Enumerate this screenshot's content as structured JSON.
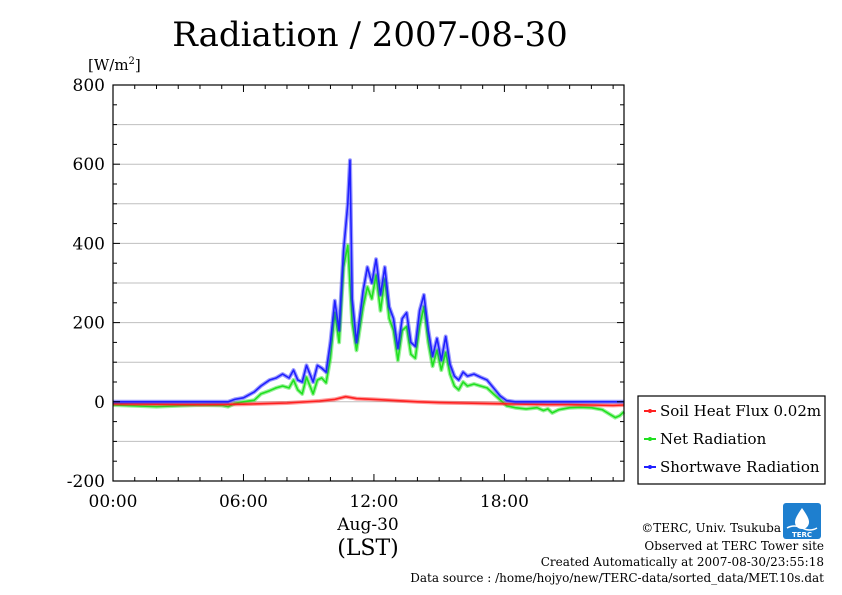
{
  "chart_data": {
    "type": "line",
    "title": "Radiation / 2007-08-30",
    "ylabel_unit": "[W/m",
    "ylabel_unit_sup": "2",
    "ylabel_unit_close": "]",
    "ylim": [
      -200,
      800
    ],
    "yticks": [
      -200,
      0,
      200,
      400,
      600,
      800
    ],
    "xlim": [
      0,
      23.5
    ],
    "xticks": [
      {
        "value": 0,
        "label": "00:00"
      },
      {
        "value": 6,
        "label": "06:00"
      },
      {
        "value": 12,
        "label": "12:00"
      },
      {
        "value": 18,
        "label": "18:00"
      }
    ],
    "xlabel_date": "Aug-30",
    "xlabel": "(LST)",
    "grid": true,
    "legend_position": "bottom-right-outside",
    "series": [
      {
        "name": "Soil Heat Flux 0.02m",
        "color": "#ff2020",
        "points": [
          [
            0,
            -5
          ],
          [
            2,
            -6
          ],
          [
            4,
            -7
          ],
          [
            6,
            -6
          ],
          [
            8,
            -3
          ],
          [
            9.5,
            2
          ],
          [
            10.2,
            6
          ],
          [
            10.7,
            13
          ],
          [
            11.2,
            8
          ],
          [
            12,
            6
          ],
          [
            13,
            3
          ],
          [
            14,
            0
          ],
          [
            15,
            -2
          ],
          [
            16,
            -3
          ],
          [
            17,
            -4
          ],
          [
            18,
            -5
          ],
          [
            19,
            -6
          ],
          [
            20,
            -7
          ],
          [
            21,
            -7
          ],
          [
            22,
            -8
          ],
          [
            23,
            -9
          ],
          [
            23.5,
            -8
          ]
        ]
      },
      {
        "name": "Net Radiation",
        "color": "#20e020",
        "points": [
          [
            0,
            -8
          ],
          [
            1,
            -10
          ],
          [
            2,
            -12
          ],
          [
            3,
            -10
          ],
          [
            4,
            -8
          ],
          [
            5,
            -9
          ],
          [
            5.3,
            -12
          ],
          [
            5.6,
            -4
          ],
          [
            6,
            0
          ],
          [
            6.5,
            4
          ],
          [
            6.8,
            20
          ],
          [
            7.2,
            28
          ],
          [
            7.5,
            35
          ],
          [
            7.8,
            40
          ],
          [
            8.1,
            35
          ],
          [
            8.3,
            55
          ],
          [
            8.5,
            30
          ],
          [
            8.7,
            20
          ],
          [
            8.9,
            62
          ],
          [
            9.2,
            20
          ],
          [
            9.4,
            55
          ],
          [
            9.6,
            60
          ],
          [
            9.8,
            48
          ],
          [
            10.0,
            110
          ],
          [
            10.2,
            225
          ],
          [
            10.4,
            150
          ],
          [
            10.6,
            340
          ],
          [
            10.8,
            395
          ],
          [
            11.0,
            200
          ],
          [
            11.2,
            130
          ],
          [
            11.5,
            240
          ],
          [
            11.7,
            290
          ],
          [
            11.9,
            260
          ],
          [
            12.1,
            320
          ],
          [
            12.3,
            230
          ],
          [
            12.5,
            310
          ],
          [
            12.7,
            210
          ],
          [
            12.9,
            180
          ],
          [
            13.1,
            105
          ],
          [
            13.3,
            180
          ],
          [
            13.5,
            190
          ],
          [
            13.7,
            120
          ],
          [
            13.9,
            110
          ],
          [
            14.1,
            190
          ],
          [
            14.3,
            240
          ],
          [
            14.5,
            150
          ],
          [
            14.7,
            90
          ],
          [
            14.9,
            130
          ],
          [
            15.1,
            80
          ],
          [
            15.3,
            125
          ],
          [
            15.5,
            70
          ],
          [
            15.7,
            40
          ],
          [
            15.9,
            30
          ],
          [
            16.1,
            50
          ],
          [
            16.3,
            40
          ],
          [
            16.6,
            45
          ],
          [
            16.9,
            40
          ],
          [
            17.2,
            35
          ],
          [
            17.5,
            20
          ],
          [
            17.8,
            5
          ],
          [
            18.1,
            -10
          ],
          [
            18.5,
            -15
          ],
          [
            19,
            -18
          ],
          [
            19.5,
            -15
          ],
          [
            19.8,
            -22
          ],
          [
            20.0,
            -18
          ],
          [
            20.2,
            -28
          ],
          [
            20.5,
            -20
          ],
          [
            21,
            -15
          ],
          [
            21.5,
            -14
          ],
          [
            22,
            -15
          ],
          [
            22.5,
            -20
          ],
          [
            22.8,
            -30
          ],
          [
            23.1,
            -40
          ],
          [
            23.3,
            -35
          ],
          [
            23.5,
            -25
          ]
        ]
      },
      {
        "name": "Shortwave Radiation",
        "color": "#2020ff",
        "points": [
          [
            0,
            0
          ],
          [
            5.3,
            0
          ],
          [
            5.6,
            6
          ],
          [
            6,
            10
          ],
          [
            6.5,
            25
          ],
          [
            6.8,
            40
          ],
          [
            7.2,
            55
          ],
          [
            7.5,
            60
          ],
          [
            7.8,
            70
          ],
          [
            8.1,
            60
          ],
          [
            8.3,
            80
          ],
          [
            8.5,
            55
          ],
          [
            8.7,
            50
          ],
          [
            8.9,
            92
          ],
          [
            9.2,
            50
          ],
          [
            9.4,
            92
          ],
          [
            9.6,
            85
          ],
          [
            9.8,
            75
          ],
          [
            10.0,
            150
          ],
          [
            10.2,
            255
          ],
          [
            10.4,
            180
          ],
          [
            10.6,
            380
          ],
          [
            10.8,
            500
          ],
          [
            10.9,
            610
          ],
          [
            11.0,
            260
          ],
          [
            11.2,
            150
          ],
          [
            11.5,
            280
          ],
          [
            11.7,
            340
          ],
          [
            11.9,
            300
          ],
          [
            12.1,
            360
          ],
          [
            12.3,
            270
          ],
          [
            12.5,
            340
          ],
          [
            12.7,
            240
          ],
          [
            12.9,
            210
          ],
          [
            13.1,
            135
          ],
          [
            13.3,
            210
          ],
          [
            13.5,
            225
          ],
          [
            13.7,
            150
          ],
          [
            13.9,
            140
          ],
          [
            14.1,
            230
          ],
          [
            14.3,
            270
          ],
          [
            14.5,
            180
          ],
          [
            14.7,
            115
          ],
          [
            14.9,
            160
          ],
          [
            15.1,
            105
          ],
          [
            15.3,
            165
          ],
          [
            15.5,
            95
          ],
          [
            15.7,
            65
          ],
          [
            15.9,
            55
          ],
          [
            16.1,
            75
          ],
          [
            16.3,
            65
          ],
          [
            16.6,
            70
          ],
          [
            16.9,
            62
          ],
          [
            17.2,
            55
          ],
          [
            17.5,
            35
          ],
          [
            17.8,
            15
          ],
          [
            18.1,
            3
          ],
          [
            18.5,
            0
          ],
          [
            23.5,
            0
          ]
        ]
      }
    ]
  },
  "credits": {
    "copyright": "©TERC, Univ. Tsukuba",
    "site": "Observed at TERC Tower site",
    "created": "Created Automatically at 2007-08-30/23:55:18",
    "source": "Data source : /home/hojyo/new/TERC-data/sorted_data/MET.10s.dat",
    "logo_text": "TERC"
  },
  "colors": {
    "grid": "#bfbfbf",
    "logo": "#1e7fcf"
  }
}
